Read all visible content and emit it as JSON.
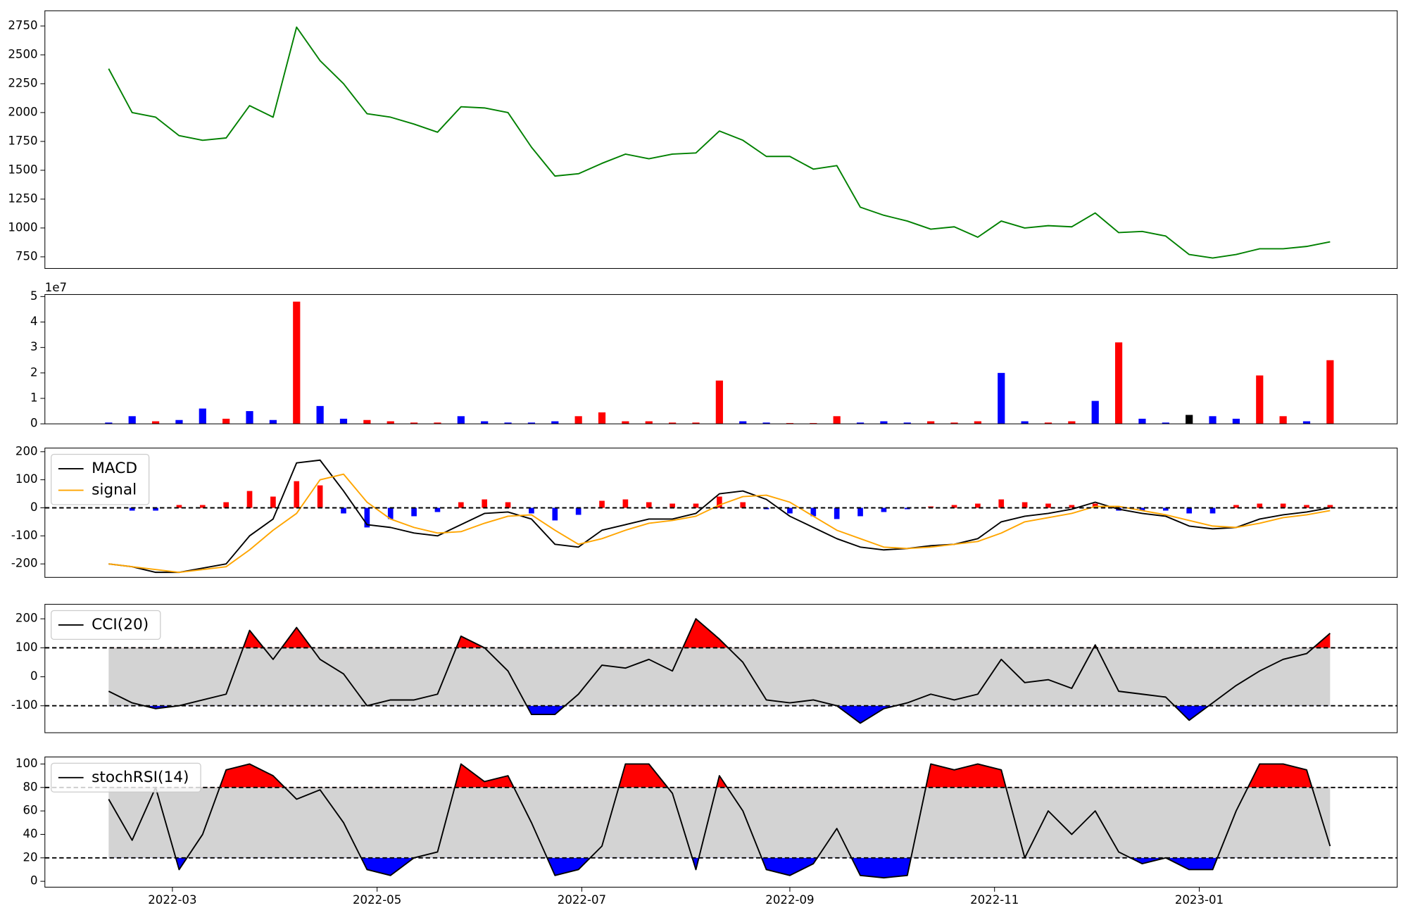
{
  "chart_data": [
    {
      "type": "line",
      "xlim": [
        21,
        424
      ],
      "ylim": [
        649,
        2882
      ],
      "yticks": [
        750,
        1000,
        1250,
        1500,
        1750,
        2000,
        2250,
        2500,
        2750
      ],
      "x": [
        40,
        47,
        54,
        61,
        68,
        75,
        82,
        89,
        96,
        103,
        110,
        117,
        124,
        131,
        138,
        145,
        152,
        159,
        166,
        173,
        180,
        187,
        194,
        201,
        208,
        215,
        222,
        229,
        236,
        243,
        250,
        257,
        264,
        271,
        278,
        285,
        292,
        299,
        306,
        313,
        320,
        327,
        334,
        341,
        348,
        355,
        362,
        369,
        376,
        383,
        390,
        397,
        404
      ],
      "series": [
        {
          "color": "green",
          "values": [
            2380,
            2000,
            1960,
            1800,
            1760,
            1780,
            2060,
            1960,
            2740,
            2450,
            2250,
            1990,
            1960,
            1900,
            1830,
            2050,
            2040,
            2000,
            1700,
            1450,
            1470,
            1560,
            1640,
            1600,
            1640,
            1650,
            1840,
            1760,
            1620,
            1620,
            1510,
            1540,
            1180,
            1110,
            1060,
            990,
            1010,
            920,
            1060,
            1000,
            1020,
            1010,
            1130,
            960,
            970,
            930,
            770,
            740,
            770,
            820,
            820,
            840,
            880
          ]
        }
      ]
    },
    {
      "type": "bar",
      "xlim": [
        21,
        424
      ],
      "ylim": [
        0,
        5.08
      ],
      "yticks": [
        0,
        1,
        2,
        3,
        4,
        5
      ],
      "offset_label": "1e7",
      "x": [
        40,
        47,
        54,
        61,
        68,
        75,
        82,
        89,
        96,
        103,
        110,
        117,
        124,
        131,
        138,
        145,
        152,
        159,
        166,
        173,
        180,
        187,
        194,
        201,
        208,
        215,
        222,
        229,
        236,
        243,
        250,
        257,
        264,
        271,
        278,
        285,
        292,
        299,
        306,
        313,
        320,
        327,
        334,
        341,
        348,
        355,
        362,
        369,
        376,
        383,
        390,
        397,
        404
      ],
      "values": [
        0.05,
        0.3,
        0.1,
        0.15,
        0.6,
        0.2,
        0.5,
        0.15,
        4.8,
        0.7,
        0.2,
        0.15,
        0.1,
        0.05,
        0.05,
        0.3,
        0.1,
        0.05,
        0.05,
        0.1,
        0.3,
        0.45,
        0.1,
        0.1,
        0.05,
        0.05,
        1.7,
        0.1,
        0.05,
        0.03,
        0.03,
        0.3,
        0.05,
        0.1,
        0.05,
        0.1,
        0.05,
        0.1,
        2.0,
        0.1,
        0.05,
        0.1,
        0.9,
        3.2,
        0.2,
        0.05,
        0.35,
        0.3,
        0.2,
        1.9,
        0.3,
        0.1,
        2.5
      ],
      "colors": [
        "blue",
        "blue",
        "red",
        "blue",
        "blue",
        "red",
        "blue",
        "blue",
        "red",
        "blue",
        "blue",
        "red",
        "red",
        "red",
        "red",
        "blue",
        "blue",
        "blue",
        "blue",
        "blue",
        "red",
        "red",
        "red",
        "red",
        "red",
        "red",
        "red",
        "blue",
        "blue",
        "red",
        "red",
        "red",
        "blue",
        "blue",
        "blue",
        "red",
        "red",
        "red",
        "blue",
        "blue",
        "red",
        "red",
        "blue",
        "red",
        "blue",
        "blue",
        "black",
        "blue",
        "blue",
        "red",
        "red",
        "blue",
        "red"
      ]
    },
    {
      "type": "line",
      "xlim": [
        21,
        424
      ],
      "ylim": [
        -248,
        213
      ],
      "yticks": [
        -200,
        -100,
        0,
        100,
        200
      ],
      "hlines": [
        0
      ],
      "x": [
        40,
        47,
        54,
        61,
        68,
        75,
        82,
        89,
        96,
        103,
        110,
        117,
        124,
        131,
        138,
        145,
        152,
        159,
        166,
        173,
        180,
        187,
        194,
        201,
        208,
        215,
        222,
        229,
        236,
        243,
        250,
        257,
        264,
        271,
        278,
        285,
        292,
        299,
        306,
        313,
        320,
        327,
        334,
        341,
        348,
        355,
        362,
        369,
        376,
        383,
        390,
        397,
        404
      ],
      "histogram": [
        0,
        -10,
        -10,
        10,
        10,
        20,
        60,
        40,
        95,
        80,
        -20,
        -70,
        -40,
        -30,
        -15,
        20,
        30,
        20,
        -20,
        -45,
        -25,
        25,
        30,
        20,
        15,
        15,
        40,
        20,
        -5,
        -20,
        -30,
        -40,
        -30,
        -15,
        -5,
        5,
        10,
        15,
        30,
        20,
        15,
        10,
        15,
        -10,
        -10,
        -10,
        -20,
        -20,
        10,
        15,
        15,
        10,
        10
      ],
      "up_color": "red",
      "down_color": "blue",
      "series": [
        {
          "name": "MACD",
          "color": "black",
          "values": [
            -200,
            -210,
            -230,
            -230,
            -215,
            -200,
            -100,
            -40,
            160,
            170,
            60,
            -60,
            -70,
            -90,
            -100,
            -60,
            -20,
            -15,
            -40,
            -130,
            -140,
            -80,
            -60,
            -40,
            -40,
            -20,
            50,
            60,
            30,
            -30,
            -70,
            -110,
            -140,
            -150,
            -145,
            -135,
            -130,
            -110,
            -50,
            -30,
            -20,
            -5,
            20,
            -5,
            -20,
            -30,
            -65,
            -75,
            -70,
            -40,
            -25,
            -15,
            0
          ]
        },
        {
          "name": "signal",
          "color": "orange",
          "values": [
            -200,
            -210,
            -220,
            -230,
            -220,
            -210,
            -150,
            -80,
            -20,
            100,
            120,
            20,
            -40,
            -70,
            -90,
            -85,
            -55,
            -30,
            -25,
            -80,
            -130,
            -110,
            -80,
            -55,
            -45,
            -30,
            10,
            40,
            45,
            20,
            -30,
            -80,
            -110,
            -140,
            -145,
            -140,
            -130,
            -120,
            -90,
            -50,
            -35,
            -20,
            5,
            5,
            -10,
            -25,
            -45,
            -65,
            -70,
            -55,
            -35,
            -25,
            -10
          ]
        }
      ]
    },
    {
      "type": "line",
      "xlim": [
        21,
        424
      ],
      "ylim": [
        -193,
        250
      ],
      "yticks": [
        -100,
        0,
        100,
        200
      ],
      "hlines": [
        100,
        -100
      ],
      "band": true,
      "band_color": "lightgray",
      "fill_colors": [
        "red",
        "blue"
      ],
      "x": [
        40,
        47,
        54,
        61,
        68,
        75,
        82,
        89,
        96,
        103,
        110,
        117,
        124,
        131,
        138,
        145,
        152,
        159,
        166,
        173,
        180,
        187,
        194,
        201,
        208,
        215,
        222,
        229,
        236,
        243,
        250,
        257,
        264,
        271,
        278,
        285,
        292,
        299,
        306,
        313,
        320,
        327,
        334,
        341,
        348,
        355,
        362,
        369,
        376,
        383,
        390,
        397,
        404
      ],
      "series": [
        {
          "name": "CCI(20)",
          "color": "black",
          "values": [
            -50,
            -90,
            -110,
            -100,
            -80,
            -60,
            160,
            60,
            170,
            60,
            10,
            -100,
            -80,
            -80,
            -60,
            140,
            100,
            20,
            -130,
            -130,
            -60,
            40,
            30,
            60,
            20,
            200,
            130,
            50,
            -80,
            -90,
            -80,
            -100,
            -160,
            -110,
            -90,
            -60,
            -80,
            -60,
            60,
            -20,
            -10,
            -40,
            110,
            -50,
            -60,
            -70,
            -150,
            -90,
            -30,
            20,
            60,
            80,
            150
          ]
        }
      ]
    },
    {
      "type": "line",
      "xlim": [
        21,
        424
      ],
      "ylim": [
        -5,
        106
      ],
      "yticks": [
        0,
        20,
        40,
        60,
        80,
        100
      ],
      "hlines": [
        80,
        20
      ],
      "band": true,
      "band_color": "lightgray",
      "fill_colors": [
        "red",
        "blue"
      ],
      "x": [
        40,
        47,
        54,
        61,
        68,
        75,
        82,
        89,
        96,
        103,
        110,
        117,
        124,
        131,
        138,
        145,
        152,
        159,
        166,
        173,
        180,
        187,
        194,
        201,
        208,
        215,
        222,
        229,
        236,
        243,
        250,
        257,
        264,
        271,
        278,
        285,
        292,
        299,
        306,
        313,
        320,
        327,
        334,
        341,
        348,
        355,
        362,
        369,
        376,
        383,
        390,
        397,
        404
      ],
      "xticks": [
        {
          "value": 59,
          "label": "2022-03"
        },
        {
          "value": 120,
          "label": "2022-05"
        },
        {
          "value": 181,
          "label": "2022-07"
        },
        {
          "value": 243,
          "label": "2022-09"
        },
        {
          "value": 304,
          "label": "2022-11"
        },
        {
          "value": 365,
          "label": "2023-01"
        }
      ],
      "series": [
        {
          "name": "stochRSI(14)",
          "color": "black",
          "values": [
            70,
            35,
            80,
            10,
            40,
            95,
            100,
            90,
            70,
            78,
            50,
            10,
            5,
            20,
            25,
            100,
            85,
            90,
            50,
            5,
            10,
            30,
            100,
            100,
            75,
            10,
            90,
            60,
            10,
            5,
            15,
            45,
            5,
            3,
            5,
            100,
            95,
            100,
            95,
            20,
            60,
            40,
            60,
            25,
            15,
            20,
            10,
            10,
            60,
            100,
            100,
            95,
            30
          ]
        }
      ]
    }
  ]
}
